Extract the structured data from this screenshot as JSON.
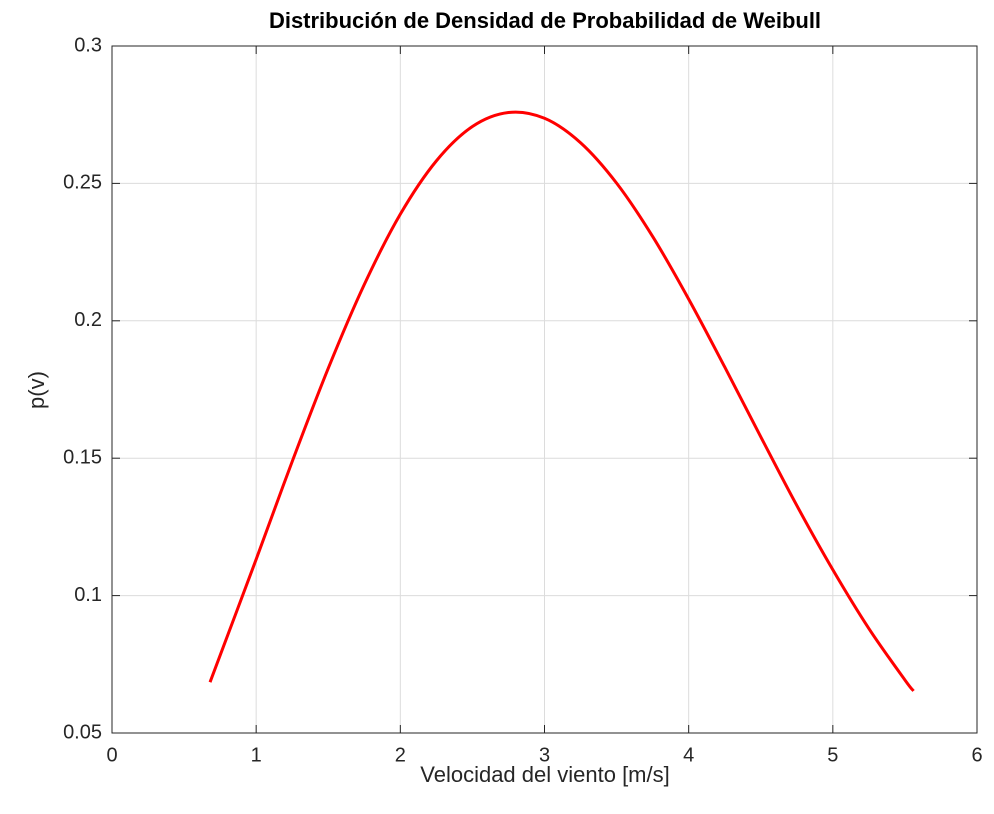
{
  "chart_data": {
    "type": "line",
    "title": "Distribución de Densidad de Probabilidad de Weibull",
    "xlabel": "Velocidad del viento [m/s]",
    "ylabel": "p(v)",
    "xlim": [
      0,
      6
    ],
    "xticks": [
      0,
      1,
      2,
      3,
      4,
      5,
      6
    ],
    "ylim": [
      0.05,
      0.3
    ],
    "yticks": [
      0.05,
      0.1,
      0.15,
      0.2,
      0.25,
      0.3
    ],
    "grid": true,
    "series": [
      {
        "color": "#ff0000",
        "x": [
          0.68,
          1,
          1.25,
          1.5,
          1.75,
          2,
          2.25,
          2.5,
          2.75,
          3,
          3.25,
          3.5,
          3.75,
          4,
          4.25,
          4.5,
          4.75,
          5,
          5.25,
          5.5,
          5.56
        ],
        "values": [
          0.0685,
          0.1132,
          0.1488,
          0.1827,
          0.2132,
          0.2388,
          0.2582,
          0.2707,
          0.2758,
          0.2737,
          0.2648,
          0.2501,
          0.2307,
          0.2079,
          0.1832,
          0.1578,
          0.1328,
          0.1094,
          0.088,
          0.0693,
          0.0653
        ]
      }
    ]
  }
}
